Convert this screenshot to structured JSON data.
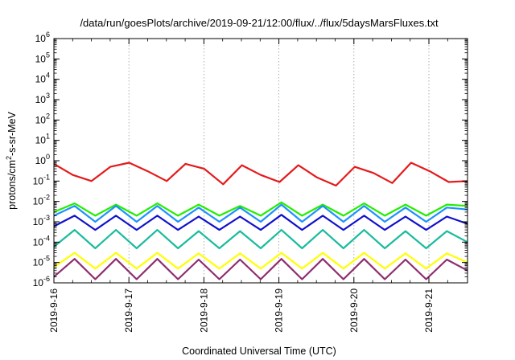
{
  "chart_data": {
    "type": "line",
    "title": "/data/run/goesPlots/archive/2019-09-21/12:00/flux/../flux/5daysMarsFluxes.txt",
    "xlabel": "Coordinated Universal Time (UTC)",
    "ylabel_base": "protons/cm",
    "ylabel_sup": "2",
    "ylabel_rest": "-s-sr-MeV",
    "y_scale": "log",
    "ylim": [
      1e-06,
      1000000.0
    ],
    "y_ticks": [
      {
        "base": "10",
        "exp": "-6",
        "value": 1e-06
      },
      {
        "base": "10",
        "exp": "-5",
        "value": 1e-05
      },
      {
        "base": "10",
        "exp": "-4",
        "value": 0.0001
      },
      {
        "base": "10",
        "exp": "-3",
        "value": 0.001
      },
      {
        "base": "10",
        "exp": "-2",
        "value": 0.01
      },
      {
        "base": "10",
        "exp": "-1",
        "value": 0.1
      },
      {
        "base": "10",
        "exp": "0",
        "value": 1.0
      },
      {
        "base": "10",
        "exp": "1",
        "value": 10.0
      },
      {
        "base": "10",
        "exp": "2",
        "value": 100.0
      },
      {
        "base": "10",
        "exp": "3",
        "value": 1000.0
      },
      {
        "base": "10",
        "exp": "4",
        "value": 10000.0
      },
      {
        "base": "10",
        "exp": "5",
        "value": 100000.0
      },
      {
        "base": "10",
        "exp": "6",
        "value": 1000000.0
      }
    ],
    "xlim": [
      "2019-09-16",
      "2019-09-21 12:00"
    ],
    "x_ticks": [
      "2019-9-16",
      "2019-9-17",
      "2019-9-18",
      "2019-9-19",
      "2019-9-20",
      "2019-9-21"
    ],
    "grid": "x-only-dotted",
    "legend": "none",
    "series": [
      {
        "color": "#e41a1c",
        "values": [
          0.7,
          0.2,
          0.1,
          0.5,
          0.8,
          0.3,
          0.1,
          0.7,
          0.4,
          0.07,
          0.6,
          0.2,
          0.09,
          0.6,
          0.15,
          0.06,
          0.5,
          0.25,
          0.08,
          0.8,
          0.3,
          0.09,
          0.1
        ]
      },
      {
        "color": "#22ee00",
        "values": [
          0.003,
          0.008,
          0.002,
          0.007,
          0.002,
          0.008,
          0.002,
          0.007,
          0.002,
          0.006,
          0.002,
          0.009,
          0.002,
          0.007,
          0.002,
          0.008,
          0.002,
          0.007,
          0.002,
          0.007,
          0.006
        ]
      },
      {
        "color": "#1e90ff",
        "values": [
          0.002,
          0.006,
          0.001,
          0.006,
          0.001,
          0.006,
          0.001,
          0.005,
          0.001,
          0.005,
          0.001,
          0.007,
          0.001,
          0.006,
          0.001,
          0.006,
          0.001,
          0.005,
          0.001,
          0.005,
          0.004
        ]
      },
      {
        "color": "#1010cc",
        "values": [
          0.0006,
          0.002,
          0.0004,
          0.002,
          0.0004,
          0.002,
          0.0004,
          0.0018,
          0.0004,
          0.0018,
          0.0004,
          0.0022,
          0.0004,
          0.002,
          0.0004,
          0.002,
          0.0004,
          0.0018,
          0.0004,
          0.0018,
          0.0008
        ]
      },
      {
        "color": "#1abc9c",
        "values": [
          6e-05,
          0.0004,
          5e-05,
          0.0004,
          5e-05,
          0.0004,
          5e-05,
          0.00035,
          5e-05,
          0.00035,
          5e-05,
          0.0004,
          5e-05,
          0.0004,
          5e-05,
          0.0004,
          5e-05,
          0.00035,
          5e-05,
          0.00035,
          0.0001
        ]
      },
      {
        "color": "#ffff00",
        "values": [
          6e-06,
          3e-05,
          5e-06,
          3e-05,
          5e-06,
          3e-05,
          5e-06,
          2.8e-05,
          5e-06,
          2.8e-05,
          5e-06,
          3e-05,
          5e-06,
          3e-05,
          5e-06,
          3e-05,
          5e-06,
          2.8e-05,
          5e-06,
          2.8e-05,
          1e-05
        ]
      },
      {
        "color": "#8e2d6e",
        "values": [
          2e-06,
          1.5e-05,
          1.5e-06,
          1.5e-05,
          1.5e-06,
          1.5e-05,
          1.5e-06,
          1.4e-05,
          1.5e-06,
          1.4e-05,
          1.5e-06,
          1.5e-05,
          1.5e-06,
          1.5e-05,
          1.5e-06,
          1.5e-05,
          1.5e-06,
          1.4e-05,
          1.5e-06,
          1.4e-05,
          4e-06
        ]
      }
    ]
  }
}
